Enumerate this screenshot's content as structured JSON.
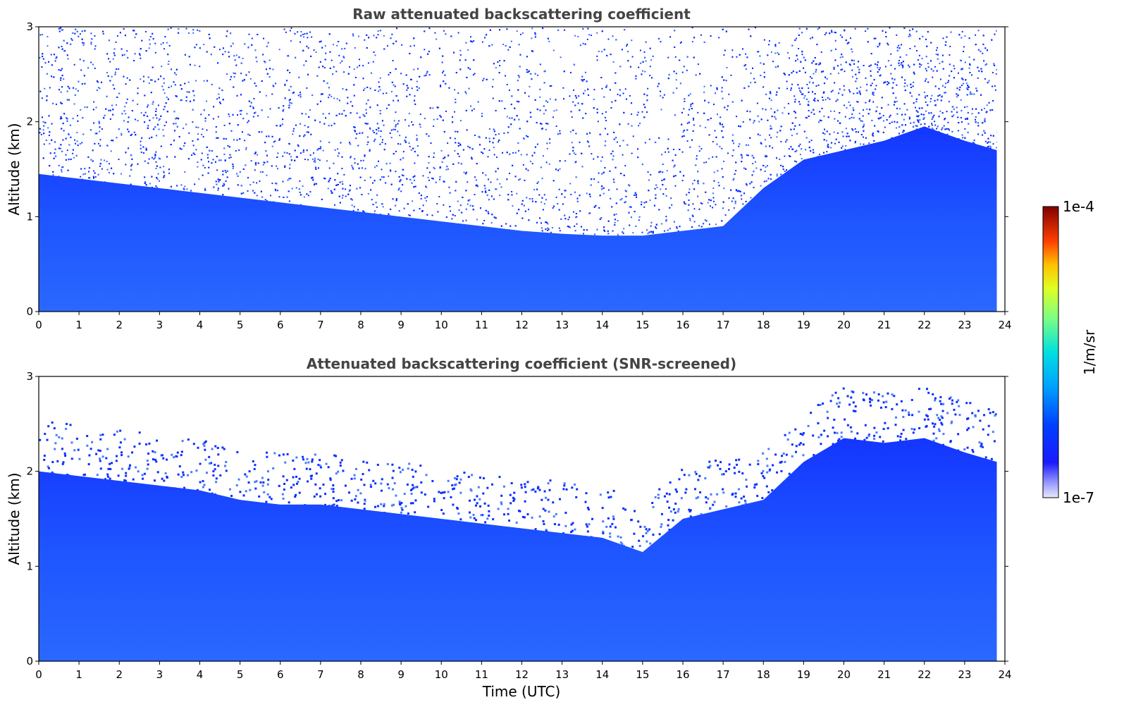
{
  "chart_data": [
    {
      "type": "heatmap",
      "title": "Raw attenuated backscattering coefficient",
      "xlabel": "",
      "ylabel": "Altitude (km)",
      "xlim": [
        0,
        24
      ],
      "ylim": [
        0,
        3
      ],
      "x_ticks": [
        "0",
        "1",
        "2",
        "3",
        "4",
        "5",
        "6",
        "7",
        "8",
        "9",
        "10",
        "11",
        "12",
        "13",
        "14",
        "15",
        "16",
        "17",
        "18",
        "19",
        "20",
        "21",
        "22",
        "23",
        "24"
      ],
      "y_ticks": [
        "0",
        "1",
        "2",
        "3"
      ],
      "data_end_time": 23.8,
      "signal_layer_top_km": [
        [
          0,
          1.45
        ],
        [
          1,
          1.4
        ],
        [
          2,
          1.35
        ],
        [
          3,
          1.3
        ],
        [
          4,
          1.25
        ],
        [
          5,
          1.2
        ],
        [
          6,
          1.15
        ],
        [
          7,
          1.1
        ],
        [
          8,
          1.05
        ],
        [
          9,
          1.0
        ],
        [
          10,
          0.95
        ],
        [
          11,
          0.9
        ],
        [
          12,
          0.85
        ],
        [
          13,
          0.82
        ],
        [
          14,
          0.8
        ],
        [
          15,
          0.8
        ],
        [
          16,
          0.85
        ],
        [
          17,
          0.9
        ],
        [
          18,
          1.3
        ],
        [
          19,
          1.6
        ],
        [
          20,
          1.7
        ],
        [
          21,
          1.8
        ],
        [
          22,
          1.95
        ],
        [
          23,
          1.8
        ],
        [
          23.8,
          1.7
        ]
      ],
      "noise_description": "speckled noise above the boundary layer"
    },
    {
      "type": "heatmap",
      "title": "Attenuated backscattering coefficient (SNR-screened)",
      "xlabel": "Time (UTC)",
      "ylabel": "Altitude (km)",
      "xlim": [
        0,
        24
      ],
      "ylim": [
        0,
        3
      ],
      "x_ticks": [
        "0",
        "1",
        "2",
        "3",
        "4",
        "5",
        "6",
        "7",
        "8",
        "9",
        "10",
        "11",
        "12",
        "13",
        "14",
        "15",
        "16",
        "17",
        "18",
        "19",
        "20",
        "21",
        "22",
        "23",
        "24"
      ],
      "y_ticks": [
        "0",
        "1",
        "2",
        "3"
      ],
      "data_end_time": 23.8,
      "screened_top_km": [
        [
          0,
          2.0
        ],
        [
          1,
          1.95
        ],
        [
          2,
          1.9
        ],
        [
          3,
          1.85
        ],
        [
          4,
          1.8
        ],
        [
          5,
          1.7
        ],
        [
          6,
          1.65
        ],
        [
          7,
          1.65
        ],
        [
          8,
          1.6
        ],
        [
          9,
          1.55
        ],
        [
          10,
          1.5
        ],
        [
          11,
          1.45
        ],
        [
          12,
          1.4
        ],
        [
          13,
          1.35
        ],
        [
          14,
          1.3
        ],
        [
          15,
          1.15
        ],
        [
          16,
          1.5
        ],
        [
          17,
          1.6
        ],
        [
          18,
          1.7
        ],
        [
          19,
          2.1
        ],
        [
          20,
          2.35
        ],
        [
          21,
          2.3
        ],
        [
          22,
          2.35
        ],
        [
          23,
          2.2
        ],
        [
          23.8,
          2.1
        ]
      ]
    }
  ],
  "colorbar": {
    "label": "1/m/sr",
    "max_label": "1e-4",
    "min_label": "1e-7",
    "scale": "log",
    "range": [
      1e-07,
      0.0001
    ],
    "colormap": "jet"
  },
  "colors": {
    "background_low": "#2a5cff",
    "boundary_layer": "#1f4dff",
    "deep_blue": "#0a2dff",
    "title": "#444444"
  }
}
